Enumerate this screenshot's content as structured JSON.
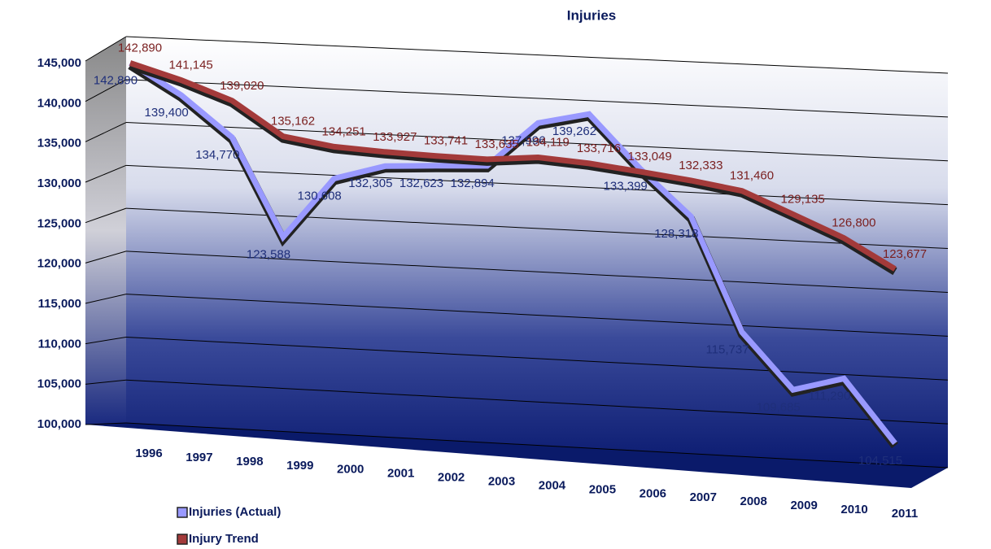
{
  "chart_data": {
    "type": "line",
    "title": "Injuries",
    "categories": [
      "1996",
      "1997",
      "1998",
      "1999",
      "2000",
      "2001",
      "2002",
      "2003",
      "2004",
      "2005",
      "2006",
      "2007",
      "2008",
      "2009",
      "2010",
      "2011"
    ],
    "series": [
      {
        "name": "Injuries (Actual)",
        "color": "#9999ff",
        "label_color": "#1f2f7a",
        "values": [
          142890,
          139400,
          134770,
          123588,
          130608,
          132305,
          132623,
          132894,
          137996,
          139262,
          133399,
          128318,
          115737,
          109685,
          111290,
          104515
        ],
        "value_labels": [
          "142,890",
          "139,400",
          "134,770",
          "123,588",
          "130,608",
          "132,305",
          "132,623",
          "132,894",
          "137,996",
          "139,262",
          "133,399",
          "128,318",
          "115,737",
          "109,685",
          "111,290",
          "104,515"
        ]
      },
      {
        "name": "Injury Trend",
        "color": "#a33a3a",
        "label_color": "#7a1f1f",
        "values": [
          142890,
          141145,
          139020,
          135162,
          134251,
          133927,
          133741,
          133635,
          134119,
          133716,
          133049,
          132333,
          131460,
          129135,
          126800,
          123677
        ],
        "value_labels": [
          "142,890",
          "141,145",
          "139,020",
          "135,162",
          "134,251",
          "133,927",
          "133,741",
          "133,635",
          "134,119",
          "133,716",
          "133,049",
          "132,333",
          "131,460",
          "129,135",
          "126,800",
          "123,677"
        ]
      }
    ],
    "ylim": [
      100000,
      145000
    ],
    "yticks": [
      {
        "value": 100000,
        "label": "100,000"
      },
      {
        "value": 105000,
        "label": "105,000"
      },
      {
        "value": 110000,
        "label": "110,000"
      },
      {
        "value": 115000,
        "label": "115,000"
      },
      {
        "value": 120000,
        "label": "120,000"
      },
      {
        "value": 125000,
        "label": "125,000"
      },
      {
        "value": 130000,
        "label": "130,000"
      },
      {
        "value": 135000,
        "label": "135,000"
      },
      {
        "value": 140000,
        "label": "140,000"
      },
      {
        "value": 145000,
        "label": "145,000"
      }
    ],
    "grid": true,
    "legend": "bottom-left"
  }
}
